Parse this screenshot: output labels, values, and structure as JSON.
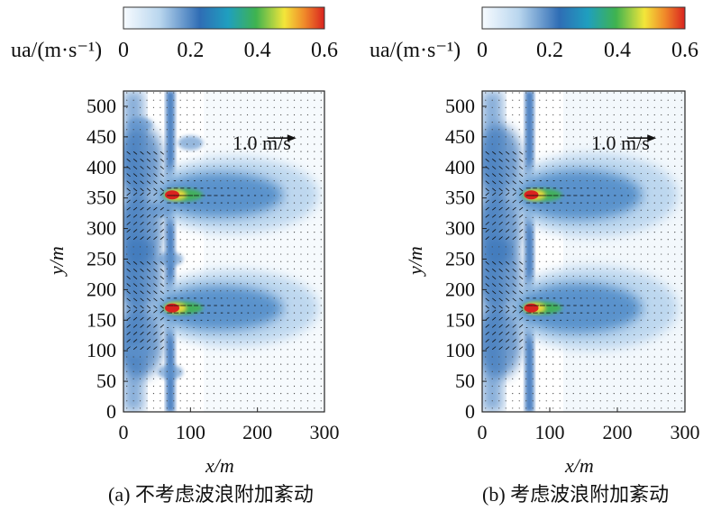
{
  "chart_data": [
    {
      "panel": "a",
      "type": "heatmap",
      "caption": "(a) 不考虑波浪附加紊动",
      "xlabel": "x/m",
      "ylabel": "y/m",
      "xlim": [
        0,
        300
      ],
      "ylim": [
        0,
        500
      ],
      "xticks": [
        0,
        100,
        200,
        300
      ],
      "yticks": [
        0,
        50,
        100,
        150,
        200,
        250,
        300,
        350,
        400,
        450,
        500
      ],
      "colorbar": {
        "label": "ua/(m·s⁻¹)",
        "range": [
          0,
          0.6
        ],
        "ticks": [
          0,
          0.2,
          0.4,
          0.6
        ]
      },
      "reference_vector": {
        "label": "1.0 m/s",
        "value": 1.0
      },
      "jets": [
        {
          "x": 70,
          "y": 355,
          "peak": 0.6
        },
        {
          "x": 70,
          "y": 170,
          "peak": 0.6
        }
      ],
      "vertical_band_x": 70,
      "turbulence": "low"
    },
    {
      "panel": "b",
      "type": "heatmap",
      "caption": "(b) 考虑波浪附加紊动",
      "xlabel": "x/m",
      "ylabel": "y/m",
      "xlim": [
        0,
        300
      ],
      "ylim": [
        0,
        500
      ],
      "xticks": [
        0,
        100,
        200,
        300
      ],
      "yticks": [
        0,
        50,
        100,
        150,
        200,
        250,
        300,
        350,
        400,
        450,
        500
      ],
      "colorbar": {
        "label": "ua/(m·s⁻¹)",
        "range": [
          0,
          0.6
        ],
        "ticks": [
          0,
          0.2,
          0.4,
          0.6
        ]
      },
      "reference_vector": {
        "label": "1.0 m/s",
        "value": 1.0
      },
      "jets": [
        {
          "x": 70,
          "y": 355,
          "peak": 0.6
        },
        {
          "x": 70,
          "y": 170,
          "peak": 0.6
        }
      ],
      "vertical_band_x": 70,
      "turbulence": "high"
    }
  ]
}
